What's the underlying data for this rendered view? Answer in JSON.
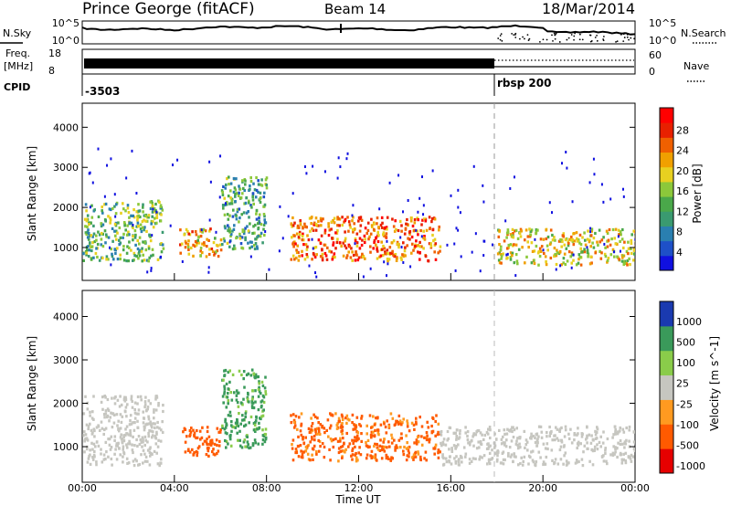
{
  "header": {
    "station": "Prince George (fitACF)",
    "beam": "Beam 14",
    "date": "18/Mar/2014"
  },
  "noise_panel": {
    "left_label": "N.Sky",
    "right_label": "N.Search",
    "left_ticks": [
      "10^5",
      "10^0"
    ],
    "right_ticks": [
      "10^5",
      "10^0"
    ]
  },
  "freq_panel": {
    "left_label_1": "Freq.",
    "left_label_2": "[MHz]",
    "left_ticks": [
      "18",
      "8"
    ],
    "right_label": "Nave",
    "right_ticks": [
      "60",
      "0"
    ]
  },
  "cpid_panel": {
    "label": "CPID",
    "cpids": [
      {
        "text": "-3503",
        "start_hour": 0
      },
      {
        "text": "rbsp 200",
        "start_hour": 18
      }
    ]
  },
  "colors": {
    "power": [
      "#1010e0",
      "#1e50c8",
      "#2a7fb0",
      "#3a9a70",
      "#4aa84a",
      "#8cc83a",
      "#e8d020",
      "#f0a000",
      "#f06000",
      "#e82000",
      "#ff0000"
    ],
    "velocity": {
      "neg_strong": "#e60000",
      "neg_mid": "#ff5a00",
      "neg_weak": "#ff9a20",
      "ground": "#c6c6c0",
      "pos_weak": "#8acc4a",
      "pos_mid": "#3a9a5a",
      "pos_strong": "#1a3ab0"
    }
  },
  "chart_data": [
    {
      "type": "heatmap",
      "title": "",
      "xlabel": "Time UT",
      "ylabel": "Slant Range [km]",
      "xlim": [
        0,
        24
      ],
      "ylim": [
        180,
        4600
      ],
      "yticks": [
        "1000",
        "2000",
        "3000",
        "4000"
      ],
      "colorbar": {
        "label": "Power [dB]",
        "ticks": [
          "4",
          "8",
          "12",
          "16",
          "20",
          "24",
          "28"
        ]
      },
      "echo_regions": [
        {
          "hours": [
            0,
            3.5
          ],
          "range_km": [
            700,
            2200
          ],
          "power_db": 12
        },
        {
          "hours": [
            4.2,
            6.0
          ],
          "range_km": [
            800,
            1500
          ],
          "power_db": 20
        },
        {
          "hours": [
            6.0,
            8.0
          ],
          "range_km": [
            1000,
            2800
          ],
          "power_db": 10
        },
        {
          "hours": [
            9.0,
            15.5
          ],
          "range_km": [
            700,
            1800
          ],
          "power_db": 24
        },
        {
          "hours": [
            18.0,
            24.0
          ],
          "range_km": [
            600,
            1500
          ],
          "power_db": 18
        }
      ]
    },
    {
      "type": "heatmap",
      "title": "",
      "xlabel": "Time UT",
      "ylabel": "Slant Range [km]",
      "xlim": [
        0,
        24
      ],
      "ylim": [
        180,
        4600
      ],
      "xticks": [
        "00:00",
        "04:00",
        "08:00",
        "12:00",
        "16:00",
        "20:00",
        "00:00"
      ],
      "yticks": [
        "1000",
        "2000",
        "3000",
        "4000"
      ],
      "colorbar": {
        "label": "Velocity [m s^-1]",
        "ticks": [
          "1000",
          "500",
          "100",
          "25",
          "-25",
          "-100",
          "-500",
          "-1000"
        ]
      },
      "echo_regions": [
        {
          "hours": [
            0,
            3.5
          ],
          "range_km": [
            600,
            2200
          ],
          "velocity_ms": 0
        },
        {
          "hours": [
            4.2,
            6.0
          ],
          "range_km": [
            800,
            1500
          ],
          "velocity_ms": -300
        },
        {
          "hours": [
            6.0,
            8.0
          ],
          "range_km": [
            1000,
            2800
          ],
          "velocity_ms": 150
        },
        {
          "hours": [
            9.0,
            15.5
          ],
          "range_km": [
            700,
            1800
          ],
          "velocity_ms": -150
        },
        {
          "hours": [
            15.5,
            24.0
          ],
          "range_km": [
            600,
            1500
          ],
          "velocity_ms": 0
        }
      ]
    }
  ]
}
